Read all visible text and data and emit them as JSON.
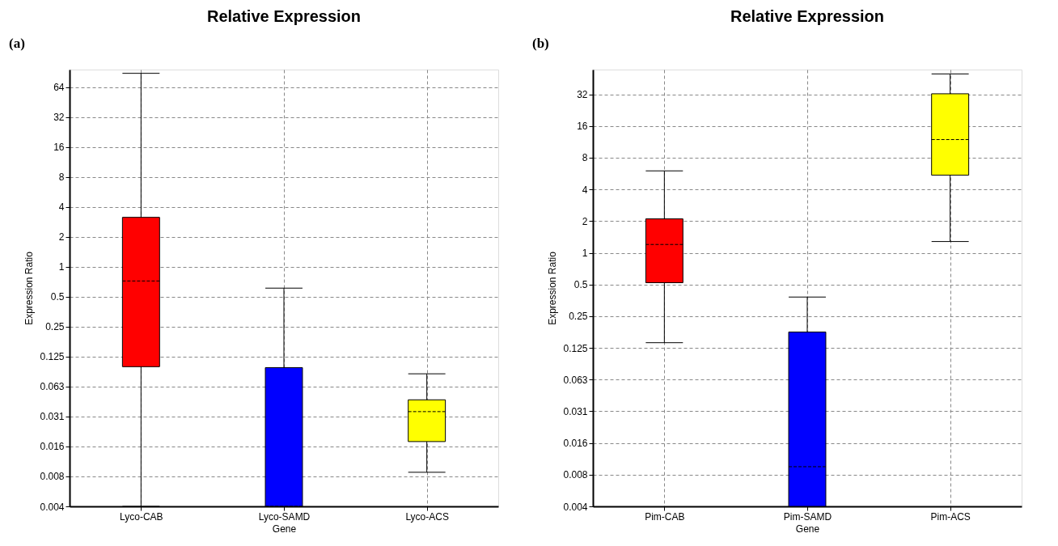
{
  "chart_data": [
    {
      "type": "box",
      "title": "Relative Expression",
      "xlabel": "Gene",
      "ylabel": "Expression Ratio",
      "annotations": [
        "(a)"
      ],
      "categories": [
        "Lyco-CAB",
        "Lyco-SAMD",
        "Lyco-ACS"
      ],
      "colors": [
        "#ff0000",
        "#0000ff",
        "#ffff00"
      ],
      "boxes": [
        {
          "low": 0.00390625,
          "q1": 0.099,
          "median": 0.72,
          "q3": 3.14,
          "high": 88
        },
        {
          "low": 0.00390625,
          "q1": 0.00390625,
          "median": 0.00390625,
          "q3": 0.097,
          "high": 0.61
        },
        {
          "low": 0.0086,
          "q1": 0.0175,
          "median": 0.035,
          "q3": 0.046,
          "high": 0.084
        }
      ],
      "log": "y",
      "grid": true,
      "ylim": [
        0.00390625,
        96
      ],
      "yticks": [
        {
          "value": 0.00390625,
          "label": "0.004"
        },
        {
          "value": 0.0078125,
          "label": "0.008"
        },
        {
          "value": 0.015625,
          "label": "0.016"
        },
        {
          "value": 0.03125,
          "label": "0.031"
        },
        {
          "value": 0.0625,
          "label": "0.063"
        },
        0.125,
        0.25,
        0.5,
        1,
        2,
        4,
        8,
        16,
        32,
        64
      ]
    },
    {
      "type": "box",
      "title": "Relative Expression",
      "xlabel": "Gene",
      "ylabel": "Expression Ratio",
      "annotations": [
        "(b)"
      ],
      "categories": [
        "Pim-CAB",
        "Pim-SAMD",
        "Pim-ACS"
      ],
      "colors": [
        "#ff0000",
        "#0000ff",
        "#ffff00"
      ],
      "boxes": [
        {
          "low": 0.14,
          "q1": 0.52,
          "median": 1.2,
          "q3": 2.1,
          "high": 6.0
        },
        {
          "low": 0.00390625,
          "q1": 0.00390625,
          "median": 0.0093,
          "q3": 0.177,
          "high": 0.38
        },
        {
          "low": 1.28,
          "q1": 5.46,
          "median": 11.9,
          "q3": 32.4,
          "high": 50
        }
      ],
      "log": "y",
      "grid": true,
      "ylim": [
        0.00390625,
        55
      ],
      "yticks": [
        {
          "value": 0.00390625,
          "label": "0.004"
        },
        {
          "value": 0.0078125,
          "label": "0.008"
        },
        {
          "value": 0.015625,
          "label": "0.016"
        },
        {
          "value": 0.03125,
          "label": "0.031"
        },
        {
          "value": 0.0625,
          "label": "0.063"
        },
        0.125,
        0.25,
        0.5,
        1,
        2,
        4,
        8,
        16,
        32
      ]
    }
  ]
}
